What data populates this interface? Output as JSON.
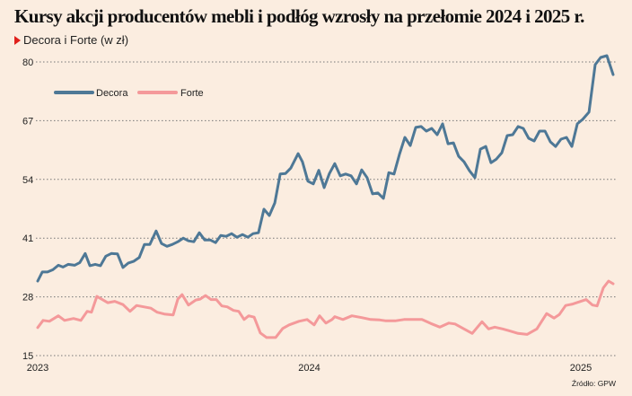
{
  "chart_data": {
    "type": "line",
    "title": "Kursy akcji producentów mebli i podłóg wzrosły na przełomie 2024 i 2025 r.",
    "subtitle": "Decora i Forte (w zł)",
    "source": "Źródło: GPW",
    "xlabel": "",
    "ylabel": "",
    "ylim": [
      15,
      80
    ],
    "yticks": [
      15,
      28,
      41,
      54,
      67,
      80
    ],
    "xlim": [
      2023.0,
      2025.13
    ],
    "xticks": [
      {
        "value": 2023,
        "label": "2023"
      },
      {
        "value": 2024,
        "label": "2024"
      },
      {
        "value": 2025,
        "label": "2025"
      }
    ],
    "grid": "horizontal dotted",
    "legend": "top-left",
    "series": [
      {
        "name": "Decora",
        "color": "#4e7896",
        "x": [
          2023.0,
          2023.017,
          2023.036,
          2023.056,
          2023.076,
          2023.093,
          2023.112,
          2023.136,
          2023.155,
          2023.175,
          2023.192,
          2023.212,
          2023.231,
          2023.251,
          2023.271,
          2023.294,
          2023.314,
          2023.334,
          2023.354,
          2023.374,
          2023.393,
          2023.413,
          2023.436,
          2023.456,
          2023.476,
          2023.496,
          2023.516,
          2023.536,
          2023.555,
          2023.575,
          2023.595,
          2023.615,
          2023.635,
          2023.655,
          2023.674,
          2023.694,
          2023.714,
          2023.734,
          2023.754,
          2023.774,
          2023.793,
          2023.813,
          2023.833,
          2023.853,
          2023.873,
          2023.893,
          2023.912,
          2023.932,
          2023.959,
          2023.975,
          2023.995,
          2024.015,
          2024.035,
          2024.055,
          2024.074,
          2024.094,
          2024.114,
          2024.134,
          2024.154,
          2024.174,
          2024.193,
          2024.213,
          2024.233,
          2024.253,
          2024.273,
          2024.293,
          2024.312,
          2024.332,
          2024.352,
          2024.372,
          2024.392,
          2024.412,
          2024.431,
          2024.451,
          2024.471,
          2024.491,
          2024.511,
          2024.531,
          2024.55,
          2024.57,
          2024.59,
          2024.61,
          2024.63,
          2024.65,
          2024.669,
          2024.689,
          2024.709,
          2024.729,
          2024.749,
          2024.769,
          2024.788,
          2024.808,
          2024.828,
          2024.848,
          2024.868,
          2024.888,
          2024.907,
          2024.927,
          2024.947,
          2024.967,
          2024.987,
          2025.007,
          2025.03,
          2025.053,
          2025.073,
          2025.096,
          2025.119
        ],
        "y": [
          31.5,
          33.5,
          33.5,
          34,
          35,
          34.6,
          35.2,
          35,
          35.6,
          37.6,
          34.9,
          35.2,
          34.9,
          37,
          37.6,
          37.5,
          34.5,
          35.5,
          35.9,
          36.7,
          39.6,
          39.6,
          42.6,
          39.8,
          39.2,
          39.6,
          40.2,
          41,
          40.4,
          40.2,
          42.2,
          40.6,
          40.6,
          40,
          41.6,
          41.4,
          42,
          41.2,
          41.8,
          41.2,
          42,
          42.2,
          47.4,
          46,
          48.8,
          55.2,
          55.3,
          56.5,
          59.7,
          57.9,
          53.6,
          53,
          56,
          52.2,
          55.3,
          57.5,
          54.8,
          55.2,
          54.8,
          53,
          56.1,
          54.4,
          50.8,
          51,
          49.8,
          55.5,
          55.2,
          59.5,
          63.3,
          61.5,
          65.5,
          65.7,
          64.7,
          65.3,
          63.9,
          66.3,
          61.9,
          62.1,
          59.1,
          57.9,
          55.9,
          54.4,
          60.7,
          61.3,
          57.7,
          58.5,
          59.9,
          63.7,
          63.9,
          65.7,
          65.3,
          63.1,
          62.5,
          64.7,
          64.7,
          62.3,
          61.3,
          62.9,
          63.3,
          61.3,
          66.3,
          67.3,
          68.9,
          79.4,
          81,
          81.4,
          77.2
        ]
      },
      {
        "name": "Forte",
        "color": "#f4999a",
        "x": [
          2023.0,
          2023.02,
          2023.043,
          2023.076,
          2023.099,
          2023.132,
          2023.159,
          2023.182,
          2023.198,
          2023.218,
          2023.258,
          2023.284,
          2023.314,
          2023.34,
          2023.364,
          2023.39,
          2023.417,
          2023.44,
          2023.466,
          2023.499,
          2023.516,
          2023.532,
          2023.555,
          2023.582,
          2023.598,
          2023.618,
          2023.638,
          2023.658,
          2023.678,
          2023.698,
          2023.721,
          2023.74,
          2023.76,
          2023.777,
          2023.797,
          2023.82,
          2023.843,
          2023.876,
          2023.902,
          2023.926,
          2023.962,
          2023.992,
          2024.018,
          2024.038,
          2024.061,
          2024.084,
          2024.094,
          2024.124,
          2024.157,
          2024.193,
          2024.226,
          2024.26,
          2024.283,
          2024.316,
          2024.349,
          2024.382,
          2024.415,
          2024.448,
          2024.481,
          2024.514,
          2024.537,
          2024.57,
          2024.6,
          2024.636,
          2024.66,
          2024.683,
          2024.712,
          2024.736,
          2024.769,
          2024.802,
          2024.838,
          2024.874,
          2024.901,
          2024.921,
          2024.944,
          2024.97,
          2025.02,
          2025.043,
          2025.06,
          2025.083,
          2025.102,
          2025.119
        ],
        "y": [
          21.2,
          22.8,
          22.6,
          23.8,
          22.8,
          23.2,
          22.8,
          24.8,
          24.6,
          28.1,
          26.7,
          27,
          26.3,
          24.8,
          26.1,
          25.8,
          25.5,
          24.6,
          24.2,
          24,
          27.5,
          28.5,
          26.2,
          27.3,
          27.5,
          28.3,
          27.4,
          27.4,
          26,
          25.8,
          25,
          24.8,
          23,
          23.8,
          23.5,
          20,
          19,
          19,
          21,
          21.8,
          22.6,
          23,
          21.8,
          23.8,
          22.2,
          23,
          23.6,
          23,
          23.8,
          23.4,
          23,
          22.9,
          22.7,
          22.7,
          23,
          23,
          23,
          22.1,
          21.3,
          22.2,
          22,
          20.9,
          19.9,
          22.5,
          20.9,
          21.3,
          20.9,
          20.5,
          19.9,
          19.7,
          20.9,
          24.3,
          23.3,
          24.1,
          26.1,
          26.4,
          27.4,
          26.2,
          26,
          30,
          31.5,
          30.9
        ]
      }
    ]
  }
}
